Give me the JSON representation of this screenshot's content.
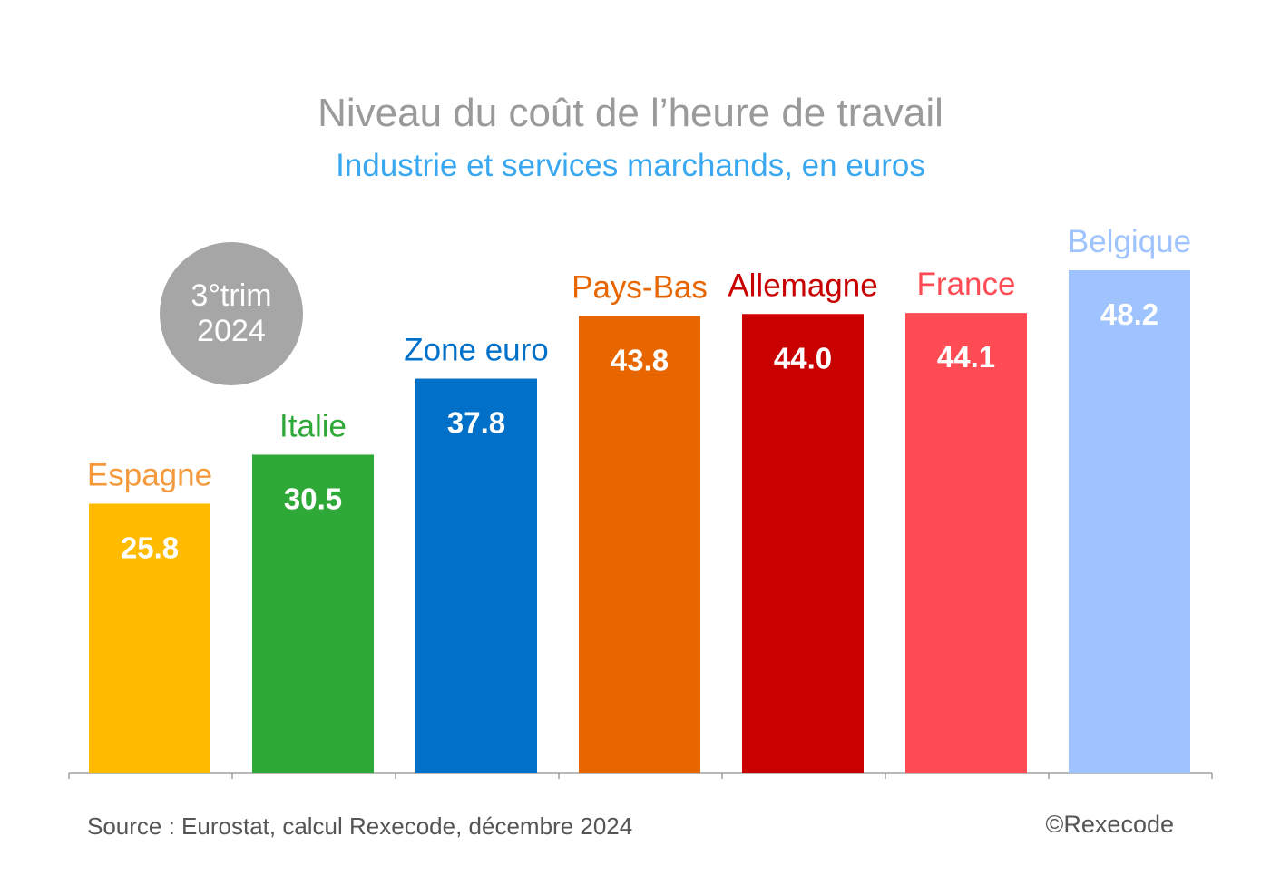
{
  "chart_data": {
    "type": "bar",
    "title": "Niveau du coût de l’heure de travail",
    "subtitle": "Industrie et services marchands, en euros",
    "categories": [
      "Espagne",
      "Italie",
      "Zone euro",
      "Pays-Bas",
      "Allemagne",
      "France",
      "Belgique"
    ],
    "values": [
      25.8,
      30.5,
      37.8,
      43.8,
      44.0,
      44.1,
      48.2
    ],
    "value_labels": [
      "25.8",
      "30.5",
      "37.8",
      "43.8",
      "44.0",
      "44.1",
      "48.2"
    ],
    "colors": [
      "#ffbb00",
      "#2ea836",
      "#0070c8",
      "#e86600",
      "#c80000",
      "#ff4c54",
      "#9ec3ff"
    ],
    "label_colors": [
      "#f59a3c",
      "#2ea836",
      "#0070c8",
      "#e86600",
      "#c80000",
      "#ff4c54",
      "#9ec3ff"
    ],
    "ylim": [
      0,
      48.2
    ],
    "xlabel": "",
    "ylabel": "",
    "legend": "none",
    "grid": false
  },
  "badge": {
    "line1": "3°trim",
    "line2": "2024"
  },
  "footer": {
    "source": "Source : Eurostat, calcul Rexecode, décembre 2024",
    "copyright": "©Rexecode"
  }
}
